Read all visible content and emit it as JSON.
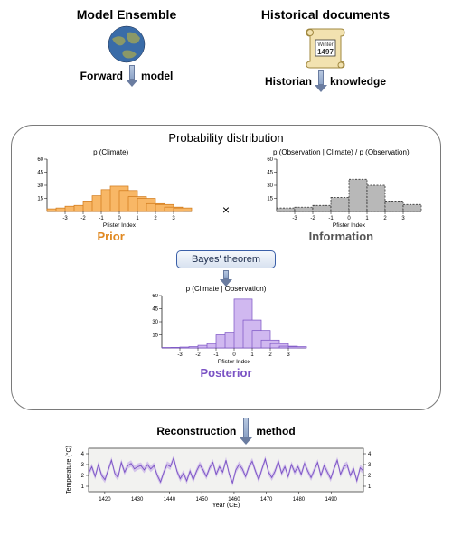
{
  "headings": {
    "model_ensemble": "Model Ensemble",
    "historical_docs": "Historical documents",
    "forward_model_pre": "Forward",
    "forward_model_post": "model",
    "historian_pre": "Historian",
    "historian_post": "knowledge",
    "prob_dist": "Probability distribution",
    "bayes": "Bayes' theorem",
    "recon_pre": "Reconstruction",
    "recon_post": "method",
    "scroll_winter": "Winter",
    "scroll_year": "1497"
  },
  "charts": {
    "prior": {
      "title": "p (Climate)",
      "label": "Prior",
      "type": "bar",
      "xlabel": "Pfister Index",
      "x_ticks": [
        -3,
        -2,
        -1,
        0,
        1,
        2,
        3
      ],
      "y_ticks": [
        15,
        30,
        45,
        60
      ],
      "ylim": [
        0,
        60
      ],
      "bar_width": 1.0,
      "fill_color": "#f8b766",
      "stroke_color": "#d07818",
      "values": {
        "-3.5": 3,
        "-3": 4,
        "-2.5": 6,
        "-2": 7,
        "-1.5": 12,
        "-1": 18,
        "-0.5": 25,
        "0": 29,
        "0.5": 24,
        "1": 17,
        "1.5": 15,
        "2": 9,
        "2.5": 8,
        "3": 5,
        "3.5": 4
      }
    },
    "information": {
      "title": "p (Observation | Climate) / p (Observation)",
      "label": "Information",
      "type": "bar",
      "xlabel": "Pfister Index",
      "x_ticks": [
        -3,
        -2,
        -1,
        0,
        1,
        2,
        3
      ],
      "y_ticks": [
        15,
        30,
        45,
        60
      ],
      "ylim": [
        0,
        60
      ],
      "bar_width": 1.0,
      "fill_color": "#b8b8b8",
      "stroke_color": "#222",
      "dashed": true,
      "values": {
        "-3.5": 4,
        "-2.5": 5,
        "-1.5": 7,
        "-0.5": 16,
        "0.5": 37,
        "1.5": 30,
        "2.5": 12,
        "3.5": 8
      }
    },
    "posterior": {
      "title": "p (Climate | Observation)",
      "label": "Posterior",
      "type": "bar",
      "xlabel": "Pfister Index",
      "x_ticks": [
        -3,
        -2,
        -1,
        0,
        1,
        2,
        3
      ],
      "y_ticks": [
        15,
        30,
        45,
        60
      ],
      "ylim": [
        0,
        60
      ],
      "bar_width": 1.0,
      "fill_color": "#d0b8f0",
      "stroke_color": "#7a52c4",
      "values": {
        "-3.5": 0.5,
        "-3": 0.5,
        "-2.5": 1,
        "-2": 1.5,
        "-1.5": 3,
        "-1": 5,
        "-0.5": 15,
        "0": 18,
        "0.5": 56,
        "1": 32,
        "1.5": 20,
        "2": 9,
        "2.5": 5,
        "3": 2,
        "3.5": 1.5
      }
    },
    "timeseries": {
      "type": "line",
      "xlabel": "Year (CE)",
      "ylabel": "Temperature (°C)",
      "x_ticks": [
        1420,
        1430,
        1440,
        1450,
        1460,
        1470,
        1480,
        1490
      ],
      "y_ticks": [
        1,
        2,
        3,
        4
      ],
      "ylim": [
        0.5,
        4.5
      ],
      "xlim": [
        1415,
        1500
      ],
      "line_color": "#7a52c4",
      "band_color": "#c8b0e8",
      "background_color": "#f2f2f0",
      "values": [
        2.2,
        2.8,
        1.9,
        3.0,
        2.0,
        1.6,
        2.5,
        3.4,
        2.2,
        1.8,
        3.2,
        2.3,
        2.9,
        3.1,
        2.6,
        2.8,
        2.9,
        2.5,
        3.0,
        2.6,
        2.9,
        2.0,
        1.4,
        2.3,
        3.0,
        2.8,
        3.6,
        2.4,
        1.7,
        2.2,
        1.5,
        2.4,
        1.6,
        2.4,
        3.0,
        2.5,
        1.9,
        2.7,
        3.2,
        2.1,
        2.8,
        2.3,
        3.4,
        2.1,
        1.3,
        2.5,
        3.0,
        2.6,
        1.9,
        2.8,
        3.3,
        2.4,
        1.6,
        2.6,
        3.5,
        2.3,
        1.8,
        2.4,
        3.3,
        2.2,
        2.8,
        1.9,
        3.0,
        2.3,
        2.8,
        2.1,
        3.1,
        2.4,
        1.8,
        2.5,
        3.2,
        2.0,
        2.9,
        2.3,
        1.7,
        2.6,
        3.4,
        2.1,
        2.8,
        3.0,
        2.0,
        2.6,
        1.5,
        2.7,
        2.4
      ]
    }
  },
  "colors": {
    "prior": "#e08820",
    "info": "#555555",
    "posterior": "#7a52c4",
    "arrow_fill": "#b8c8e0",
    "arrow_border": "#6a7ca0"
  }
}
